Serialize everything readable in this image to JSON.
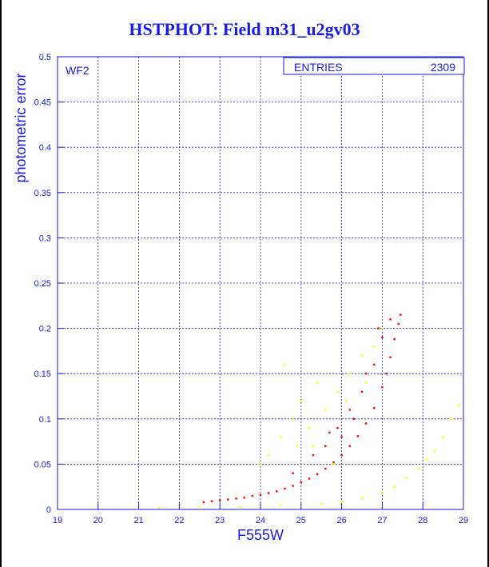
{
  "chart_data": {
    "type": "scatter",
    "title": "HSTPHOT: Field m31_u2gv03",
    "xlabel": "F555W",
    "ylabel": "photometric error",
    "xlim": [
      19,
      29
    ],
    "ylim": [
      0,
      0.5
    ],
    "x_ticks": [
      "19",
      "20",
      "21",
      "22",
      "23",
      "24",
      "25",
      "26",
      "27",
      "28",
      "29"
    ],
    "y_ticks": [
      "0",
      "0.05",
      "0.1",
      "0.15",
      "0.2",
      "0.25",
      "0.3",
      "0.35",
      "0.4",
      "0.45",
      "0.5"
    ],
    "grid": true,
    "panel_label": "WF2",
    "stats_box": {
      "label": "ENTRIES",
      "value": "2309"
    },
    "colors": {
      "axes": "#1a1ae6",
      "grid": "#1a1ae6",
      "title": "#1a1ae6"
    },
    "series": [
      {
        "color": "#ff0000",
        "description_points": "main red sequence of stars: error rising steeply with magnitude, plus scatter above",
        "points": [
          [
            22.6,
            0.008
          ],
          [
            22.8,
            0.009
          ],
          [
            23.0,
            0.01
          ],
          [
            23.2,
            0.011
          ],
          [
            23.4,
            0.012
          ],
          [
            23.6,
            0.013
          ],
          [
            23.8,
            0.015
          ],
          [
            24.0,
            0.016
          ],
          [
            24.2,
            0.018
          ],
          [
            24.4,
            0.02
          ],
          [
            24.6,
            0.023
          ],
          [
            24.8,
            0.026
          ],
          [
            25.0,
            0.03
          ],
          [
            25.2,
            0.034
          ],
          [
            25.4,
            0.039
          ],
          [
            25.6,
            0.045
          ],
          [
            25.8,
            0.052
          ],
          [
            26.0,
            0.06
          ],
          [
            26.2,
            0.07
          ],
          [
            26.4,
            0.081
          ],
          [
            26.6,
            0.095
          ],
          [
            26.8,
            0.112
          ],
          [
            27.0,
            0.135
          ],
          [
            27.1,
            0.15
          ],
          [
            27.2,
            0.168
          ],
          [
            27.3,
            0.188
          ],
          [
            27.4,
            0.205
          ],
          [
            27.45,
            0.215
          ],
          [
            25.6,
            0.07
          ],
          [
            25.9,
            0.09
          ],
          [
            26.2,
            0.11
          ],
          [
            26.5,
            0.13
          ],
          [
            26.8,
            0.16
          ],
          [
            27.0,
            0.19
          ],
          [
            26.6,
            0.15
          ],
          [
            26.0,
            0.08
          ],
          [
            25.3,
            0.06
          ],
          [
            24.8,
            0.04
          ],
          [
            26.9,
            0.2
          ],
          [
            27.2,
            0.21
          ],
          [
            26.3,
            0.1
          ],
          [
            25.7,
            0.085
          ]
        ]
      },
      {
        "color": "#ffff00",
        "description_points": "yellow sequence: low errors across magnitudes plus scatter",
        "points": [
          [
            21.5,
            0.002
          ],
          [
            22.5,
            0.003
          ],
          [
            23.5,
            0.003
          ],
          [
            24.5,
            0.004
          ],
          [
            25.0,
            0.005
          ],
          [
            25.5,
            0.006
          ],
          [
            26.0,
            0.008
          ],
          [
            26.5,
            0.012
          ],
          [
            27.0,
            0.018
          ],
          [
            27.3,
            0.025
          ],
          [
            27.6,
            0.035
          ],
          [
            27.9,
            0.045
          ],
          [
            28.1,
            0.055
          ],
          [
            28.3,
            0.065
          ],
          [
            28.5,
            0.08
          ],
          [
            28.7,
            0.1
          ],
          [
            28.9,
            0.115
          ],
          [
            24.2,
            0.06
          ],
          [
            24.5,
            0.08
          ],
          [
            24.8,
            0.1
          ],
          [
            25.0,
            0.12
          ],
          [
            25.3,
            0.07
          ],
          [
            25.6,
            0.11
          ],
          [
            25.9,
            0.13
          ],
          [
            26.2,
            0.15
          ],
          [
            26.5,
            0.17
          ],
          [
            26.8,
            0.18
          ],
          [
            27.0,
            0.2
          ],
          [
            24.6,
            0.16
          ],
          [
            25.2,
            0.09
          ],
          [
            25.8,
            0.05
          ],
          [
            24.0,
            0.05
          ],
          [
            26.1,
            0.12
          ],
          [
            26.6,
            0.14
          ],
          [
            25.4,
            0.14
          ],
          [
            24.9,
            0.07
          ]
        ]
      }
    ]
  }
}
